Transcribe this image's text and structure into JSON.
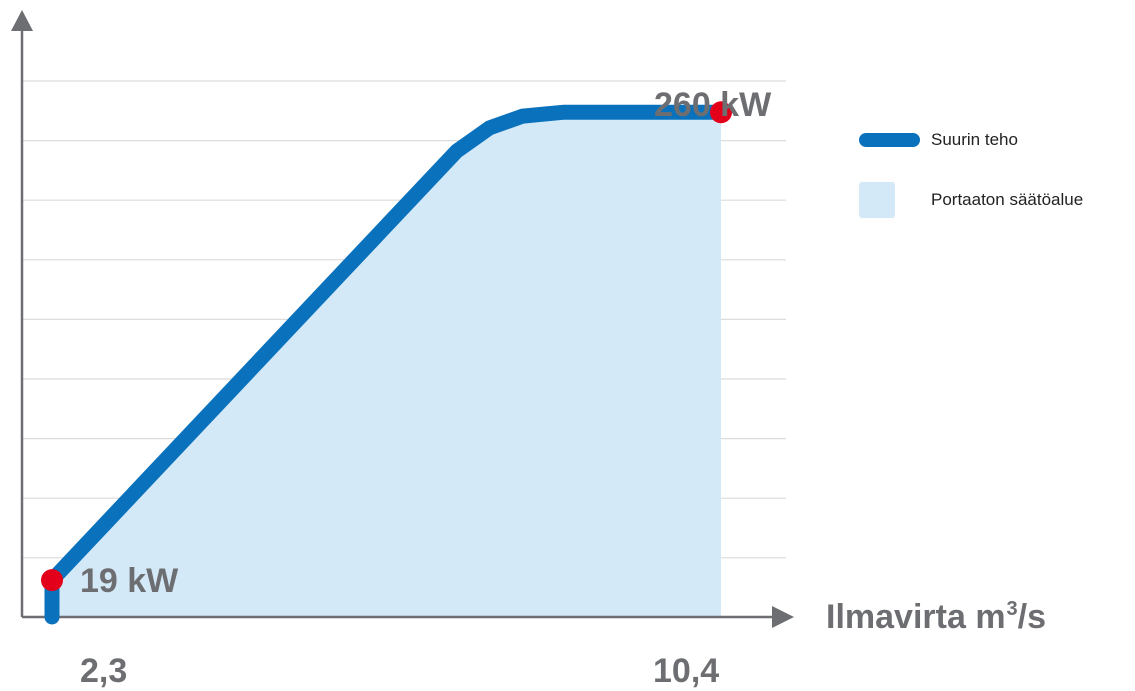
{
  "chart_data": {
    "type": "area",
    "xlabel": "Ilmavirta",
    "xlabel_unit": "m³/s",
    "xlabel_unit_base": "m",
    "xlabel_unit_sup": "3",
    "xlabel_unit_tail": "/s",
    "x_ticks": [
      "2,3",
      "10,4"
    ],
    "xlim": [
      2.3,
      10.4
    ],
    "ylim": [
      0,
      290
    ],
    "grid": true,
    "legend_position": "right",
    "series": [
      {
        "name": "Suurin teho",
        "kind": "line",
        "color": "#0a72bd",
        "x": [
          2.3,
          2.3,
          7.2,
          7.6,
          8.0,
          8.5,
          9.0,
          10.4
        ],
        "y": [
          0,
          19,
          240,
          252,
          258,
          260,
          260,
          260
        ]
      },
      {
        "name": "Portaaton säätöalue",
        "kind": "area",
        "color": "#d4e9f8"
      }
    ],
    "markers": [
      {
        "x": 2.3,
        "y": 19,
        "label": "19 kW",
        "color": "#e3001b"
      },
      {
        "x": 10.4,
        "y": 260,
        "label": "260 kW",
        "color": "#e3001b"
      }
    ]
  },
  "legend": {
    "line_label": "Suurin teho",
    "area_label": "Portaaton säätöalue"
  },
  "colors": {
    "axis": "#6d6e71",
    "grid": "#dcdcdc",
    "line": "#0a72bd",
    "area": "#d4e9f8",
    "marker": "#e3001b",
    "label": "#6d6e71"
  }
}
